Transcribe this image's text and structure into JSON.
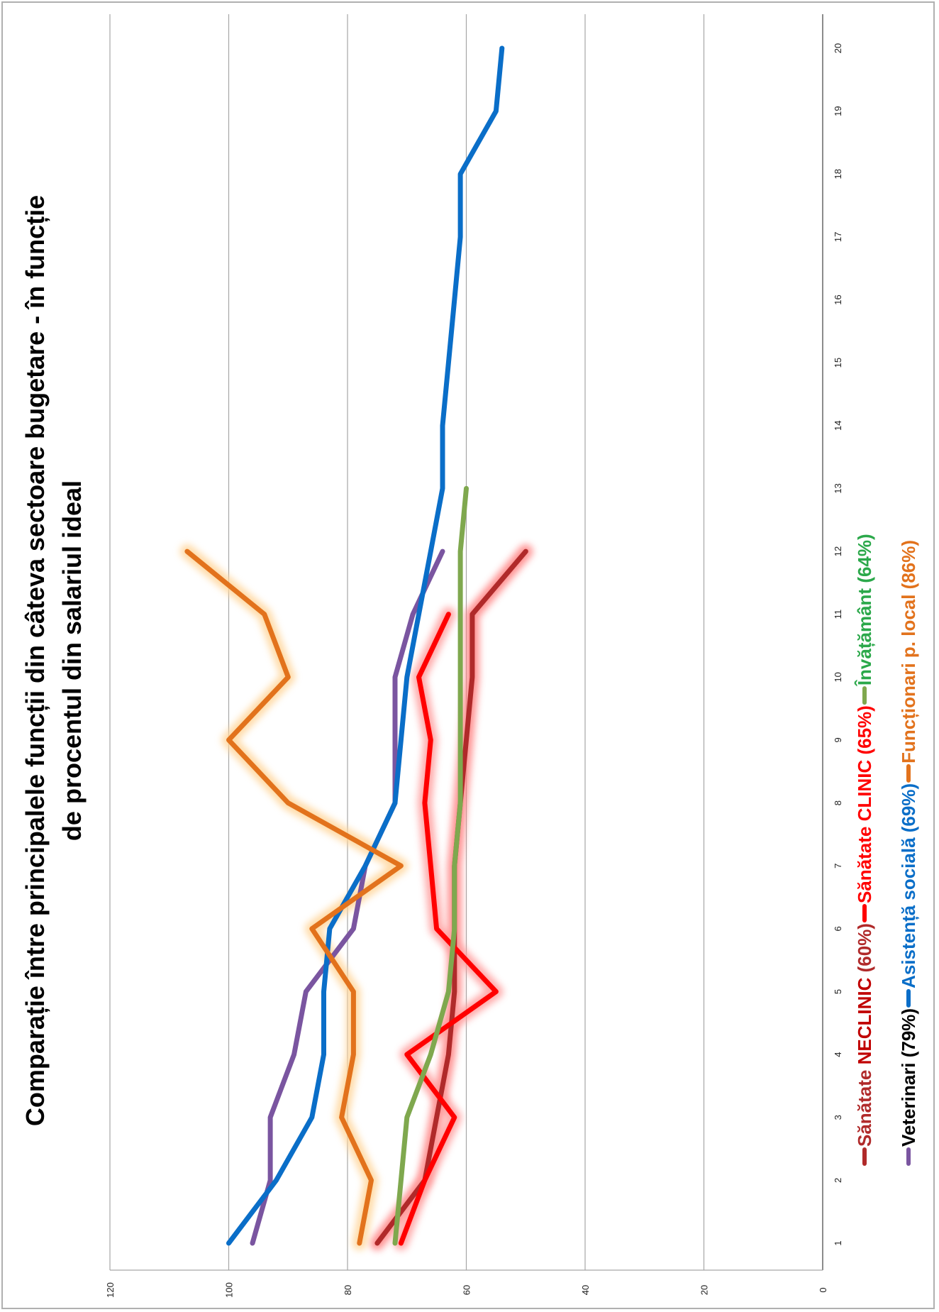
{
  "chart_data": {
    "type": "line",
    "title_line1": "Comparație între principalele funcții din câteva sectoare bugetare - în funcție",
    "title_line2": "de procentul din salariul ideal",
    "x": [
      1,
      2,
      3,
      4,
      5,
      6,
      7,
      8,
      9,
      10,
      11,
      12,
      13,
      14,
      15,
      16,
      17,
      18,
      19,
      20
    ],
    "ylim": [
      0,
      120
    ],
    "yticks": [
      0,
      20,
      40,
      60,
      80,
      100,
      120
    ],
    "grid": true,
    "legend_placement": "right",
    "series": [
      {
        "name": "Sănătate NECLINIC (60%)",
        "name_prefix": "Sănătate ",
        "name_emph": "NECLINIC",
        "name_suffix": " (60%)",
        "color": "#b02a2a",
        "text_color": "#b02a2a",
        "emph_color": "#c00000",
        "glow": true,
        "glow_color": "#ff8080",
        "values": [
          75,
          67,
          65,
          63,
          62,
          62,
          62,
          61,
          60,
          59,
          59,
          50,
          null,
          null,
          null,
          null,
          null,
          null,
          null,
          null
        ]
      },
      {
        "name": "Sănătate CLINIC (65%)",
        "name_prefix": "Sănătate ",
        "name_emph": "CLINIC",
        "name_suffix": " (65%)",
        "color": "#ff0000",
        "text_color": "#ff0000",
        "emph_color": "#ff0000",
        "glow": true,
        "glow_color": "#ff9b9b",
        "values": [
          71,
          67,
          62,
          70,
          55,
          65,
          66,
          67,
          66,
          68,
          63,
          null,
          null,
          null,
          null,
          null,
          null,
          null,
          null,
          null
        ]
      },
      {
        "name": "Veterinari (79%)",
        "name_prefix": "Veterinari (79%)",
        "name_emph": "",
        "name_suffix": "",
        "color": "#7a55a0",
        "text_color": "#000000",
        "emph_color": "#000000",
        "glow": false,
        "glow_color": "",
        "values": [
          96,
          93,
          93,
          89,
          87,
          79,
          77,
          72,
          72,
          72,
          69,
          64,
          null,
          null,
          null,
          null,
          null,
          null,
          null,
          null
        ]
      },
      {
        "name": "Asistență socială (69%)",
        "name_prefix": "Asistență socială (69%)",
        "name_emph": "",
        "name_suffix": "",
        "color": "#0a6ec8",
        "text_color": "#0a6ec8",
        "emph_color": "#0a6ec8",
        "glow": false,
        "glow_color": "",
        "values": [
          100,
          92,
          86,
          84,
          84,
          83,
          77,
          72,
          71,
          70,
          68,
          66,
          64,
          64,
          63,
          62,
          61,
          61,
          55,
          54
        ]
      },
      {
        "name": "Învățământ (64%)",
        "name_prefix": "Învățământ (64%)",
        "name_emph": "",
        "name_suffix": "",
        "color": "#7fa84e",
        "text_color": "#2ba84a",
        "emph_color": "#2ba84a",
        "glow": false,
        "glow_color": "",
        "values": [
          72,
          71,
          70,
          66,
          63,
          62,
          62,
          61,
          61,
          61,
          61,
          61,
          60,
          null,
          null,
          null,
          null,
          null,
          null,
          null
        ]
      },
      {
        "name": "Funcționari p. local (86%)",
        "name_prefix": "Funcționari p. local (86%)",
        "name_emph": "",
        "name_suffix": "",
        "color": "#e2721c",
        "text_color": "#e2721c",
        "emph_color": "#e2721c",
        "glow": true,
        "glow_color": "#ffd59a",
        "values": [
          78,
          76,
          81,
          79,
          79,
          86,
          71,
          90,
          100,
          90,
          94,
          107,
          null,
          null,
          null,
          null,
          null,
          null,
          null,
          null
        ]
      }
    ]
  }
}
